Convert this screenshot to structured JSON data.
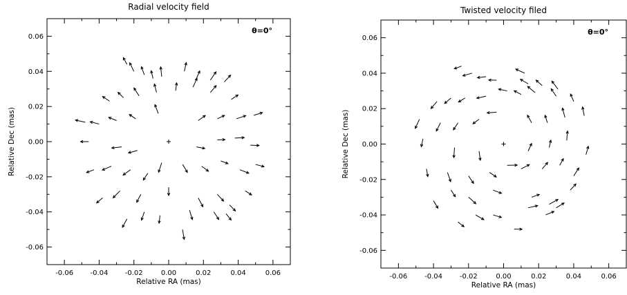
{
  "chart_data": [
    {
      "type": "quiver",
      "title": "Radial velocity field",
      "annotation": "θ=0°",
      "xlabel": "Relative RA (mas)",
      "ylabel": "Relative Dec (mas)",
      "xlim": [
        -0.07,
        0.07
      ],
      "ylim": [
        -0.07,
        0.07
      ],
      "x_ticks": [
        "-0.06",
        "-0.04",
        "-0.02",
        "0.00",
        "0.02",
        "0.04",
        "0.06"
      ],
      "y_ticks": [
        "-0.06",
        "-0.04",
        "-0.02",
        "0.00",
        "0.02",
        "0.04",
        "0.06"
      ],
      "center": [
        0.0,
        0.0
      ],
      "vector_field": "radial",
      "points": [
        [
          -0.024,
          0.044
        ],
        [
          -0.02,
          0.04
        ],
        [
          -0.014,
          0.038
        ],
        [
          -0.009,
          0.036
        ],
        [
          -0.004,
          0.037
        ],
        [
          0.009,
          0.04
        ],
        [
          0.016,
          0.036
        ],
        [
          0.024,
          0.035
        ],
        [
          0.032,
          0.034
        ],
        [
          -0.034,
          0.023
        ],
        [
          -0.026,
          0.025
        ],
        [
          -0.017,
          0.026
        ],
        [
          -0.007,
          0.028
        ],
        [
          0.004,
          0.029
        ],
        [
          0.014,
          0.031
        ],
        [
          0.024,
          0.028
        ],
        [
          0.036,
          0.024
        ],
        [
          -0.048,
          0.011
        ],
        [
          -0.04,
          0.01
        ],
        [
          -0.03,
          0.012
        ],
        [
          -0.019,
          0.013
        ],
        [
          -0.006,
          0.016
        ],
        [
          0.017,
          0.012
        ],
        [
          0.028,
          0.013
        ],
        [
          0.039,
          0.013
        ],
        [
          0.049,
          0.015
        ],
        [
          -0.046,
          0.0
        ],
        [
          -0.027,
          -0.003
        ],
        [
          -0.018,
          -0.005
        ],
        [
          0.016,
          -0.003
        ],
        [
          0.028,
          0.001
        ],
        [
          0.038,
          0.002
        ],
        [
          0.047,
          -0.002
        ],
        [
          -0.043,
          -0.016
        ],
        [
          -0.033,
          -0.014
        ],
        [
          -0.022,
          -0.016
        ],
        [
          -0.012,
          -0.018
        ],
        [
          -0.004,
          -0.012
        ],
        [
          0.008,
          -0.013
        ],
        [
          0.019,
          -0.014
        ],
        [
          0.03,
          -0.011
        ],
        [
          0.041,
          -0.016
        ],
        [
          0.05,
          -0.013
        ],
        [
          -0.038,
          -0.032
        ],
        [
          -0.028,
          -0.028
        ],
        [
          -0.016,
          -0.03
        ],
        [
          0.0,
          -0.026
        ],
        [
          0.017,
          -0.032
        ],
        [
          0.028,
          -0.03
        ],
        [
          0.035,
          -0.036
        ],
        [
          0.044,
          -0.028
        ],
        [
          -0.024,
          -0.044
        ],
        [
          -0.014,
          -0.04
        ],
        [
          -0.005,
          -0.042
        ],
        [
          0.012,
          -0.039
        ],
        [
          0.026,
          -0.04
        ],
        [
          0.033,
          -0.041
        ],
        [
          0.008,
          -0.05
        ]
      ]
    },
    {
      "type": "quiver",
      "title": "Twisted velocity filed",
      "annotation": "θ=0°",
      "xlabel": "Relative RA (mas)",
      "ylabel": "Relative Dec (mas)",
      "xlim": [
        -0.07,
        0.07
      ],
      "ylim": [
        -0.07,
        0.07
      ],
      "x_ticks": [
        "-0.06",
        "-0.04",
        "-0.02",
        "0.00",
        "0.02",
        "0.04",
        "0.06"
      ],
      "y_ticks": [
        "-0.06",
        "-0.04",
        "-0.02",
        "0.00",
        "0.02",
        "0.04",
        "0.06"
      ],
      "center": [
        0.0,
        0.0
      ],
      "vector_field": "twisted",
      "points": [
        [
          -0.024,
          0.044
        ],
        [
          -0.018,
          0.04
        ],
        [
          -0.01,
          0.038
        ],
        [
          -0.004,
          0.036
        ],
        [
          0.012,
          0.04
        ],
        [
          0.014,
          0.034
        ],
        [
          0.022,
          0.033
        ],
        [
          0.031,
          0.031
        ],
        [
          -0.038,
          0.024
        ],
        [
          -0.03,
          0.026
        ],
        [
          -0.022,
          0.026
        ],
        [
          -0.01,
          0.027
        ],
        [
          0.002,
          0.03
        ],
        [
          0.01,
          0.028
        ],
        [
          0.018,
          0.029
        ],
        [
          0.03,
          0.027
        ],
        [
          0.04,
          0.024
        ],
        [
          -0.048,
          0.014
        ],
        [
          -0.036,
          0.012
        ],
        [
          -0.026,
          0.012
        ],
        [
          -0.014,
          0.014
        ],
        [
          -0.004,
          0.018
        ],
        [
          0.016,
          0.012
        ],
        [
          0.025,
          0.012
        ],
        [
          0.035,
          0.015
        ],
        [
          0.046,
          0.016
        ],
        [
          -0.046,
          0.003
        ],
        [
          -0.028,
          -0.002
        ],
        [
          -0.014,
          -0.004
        ],
        [
          0.014,
          -0.004
        ],
        [
          0.026,
          -0.002
        ],
        [
          0.036,
          0.002
        ],
        [
          0.047,
          -0.006
        ],
        [
          -0.044,
          -0.014
        ],
        [
          -0.032,
          -0.016
        ],
        [
          -0.02,
          -0.018
        ],
        [
          -0.008,
          -0.016
        ],
        [
          0.002,
          -0.012
        ],
        [
          0.01,
          -0.014
        ],
        [
          0.022,
          -0.014
        ],
        [
          0.032,
          -0.012
        ],
        [
          0.04,
          -0.018
        ],
        [
          -0.04,
          -0.032
        ],
        [
          -0.03,
          -0.026
        ],
        [
          -0.02,
          -0.03
        ],
        [
          -0.006,
          -0.026
        ],
        [
          0.016,
          -0.03
        ],
        [
          0.026,
          -0.034
        ],
        [
          0.03,
          -0.036
        ],
        [
          0.038,
          -0.026
        ],
        [
          -0.026,
          -0.044
        ],
        [
          -0.016,
          -0.04
        ],
        [
          -0.006,
          -0.04
        ],
        [
          0.006,
          -0.048
        ],
        [
          0.014,
          -0.036
        ],
        [
          0.024,
          -0.04
        ]
      ]
    }
  ]
}
